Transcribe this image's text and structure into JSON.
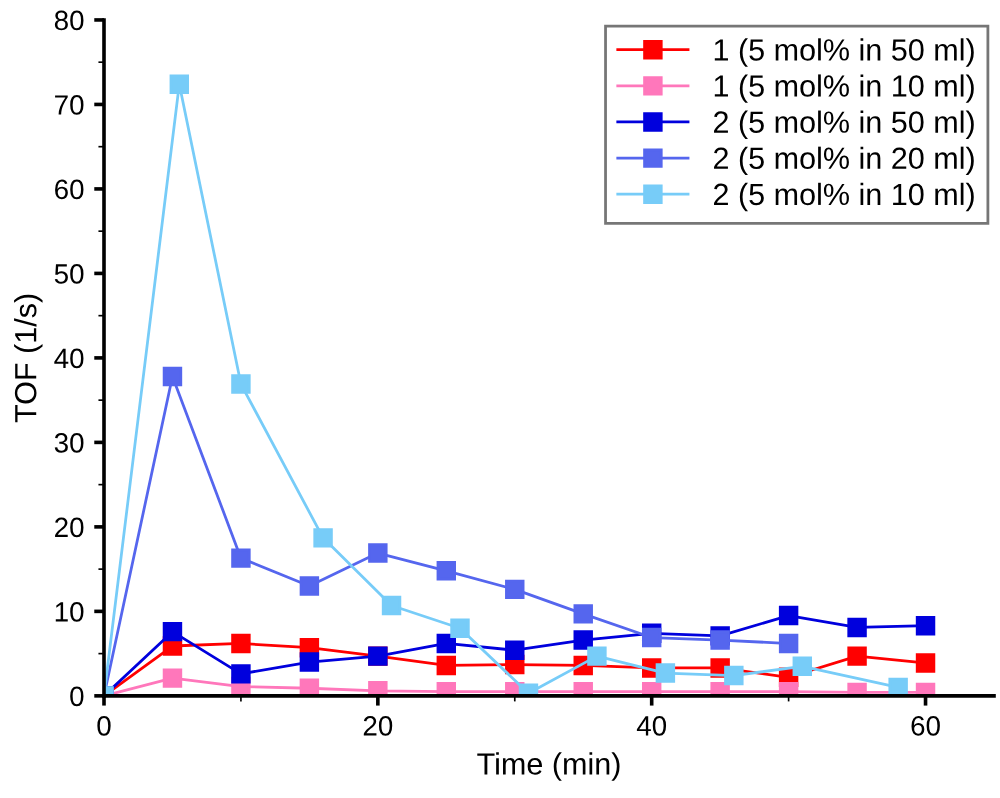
{
  "chart_data": {
    "type": "line",
    "xlabel": "Time (min)",
    "ylabel": "TOF (1/s)",
    "xlim": [
      0,
      65
    ],
    "ylim": [
      0,
      80
    ],
    "xticks": [
      0,
      20,
      40,
      60
    ],
    "yticks": [
      0,
      10,
      20,
      30,
      40,
      50,
      60,
      70,
      80
    ],
    "grid": false,
    "legend": "top right",
    "marker": "square",
    "line_style": "solid",
    "series": [
      {
        "name": "1 (5 mol% in 50 ml)",
        "color": "#ff0000",
        "x": [
          0,
          5,
          10,
          15,
          20,
          25,
          30,
          35,
          40,
          45,
          50,
          55,
          60
        ],
        "values": [
          0,
          5.9,
          6.2,
          5.7,
          4.7,
          3.6,
          3.7,
          3.6,
          3.3,
          3.3,
          2.2,
          4.7,
          3.9
        ]
      },
      {
        "name": "1 (5 mol% in 10 ml)",
        "color": "#ff77bb",
        "x": [
          0,
          5,
          10,
          15,
          20,
          25,
          30,
          35,
          40,
          45,
          50,
          55,
          60
        ],
        "values": [
          0,
          2.1,
          1.1,
          0.9,
          0.6,
          0.5,
          0.5,
          0.5,
          0.5,
          0.5,
          0.5,
          0.4,
          0.4
        ]
      },
      {
        "name": "2 (5 mol% in 50 ml)",
        "color": "#0000dd",
        "x": [
          0,
          5,
          10,
          15,
          20,
          25,
          30,
          35,
          40,
          45,
          50,
          55,
          60
        ],
        "values": [
          0,
          7.6,
          2.6,
          4.0,
          4.7,
          6.2,
          5.4,
          6.6,
          7.4,
          7.1,
          9.5,
          8.1,
          8.3
        ]
      },
      {
        "name": "2 (5 mol% in 20 ml)",
        "color": "#5566ee",
        "x": [
          0,
          5,
          10,
          15,
          20,
          25,
          30,
          35,
          40,
          45,
          50
        ],
        "values": [
          0,
          37.8,
          16.3,
          13.0,
          16.9,
          14.8,
          12.6,
          9.7,
          6.9,
          6.6,
          6.2
        ]
      },
      {
        "name": "2 (5 mol% in 10 ml)",
        "color": "#77ccf8",
        "x": [
          0,
          5.5,
          10,
          16,
          21,
          26,
          31,
          36,
          41,
          46,
          51,
          58
        ],
        "values": [
          0,
          72.4,
          36.9,
          18.7,
          10.7,
          8.0,
          0.3,
          4.7,
          2.7,
          2.4,
          3.5,
          1.0
        ]
      }
    ]
  }
}
